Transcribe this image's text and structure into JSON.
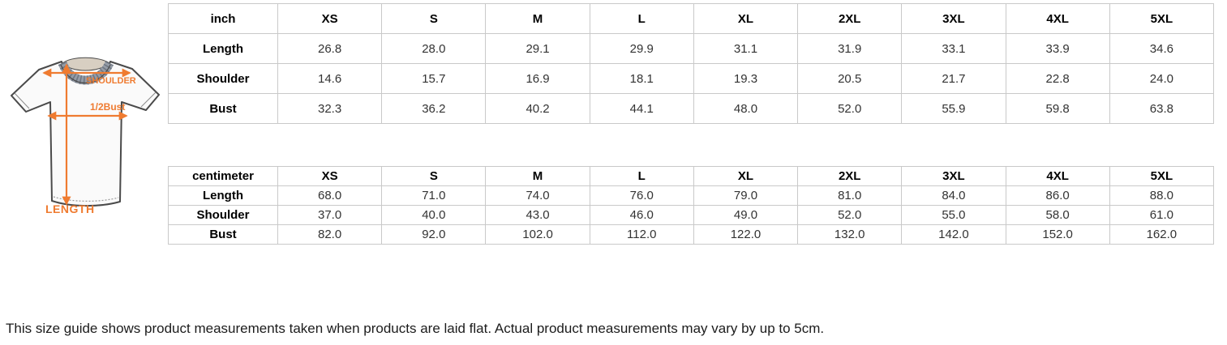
{
  "colors": {
    "accent_orange": "#EF7B30",
    "table_border": "#c9c9c9"
  },
  "diagram": {
    "shoulder_label": "SHOULDER",
    "bust_label": "1/2Bust",
    "length_label": "LENGTH"
  },
  "tables": [
    {
      "unit_header": "inch",
      "size_headers": [
        "XS",
        "S",
        "M",
        "L",
        "XL",
        "2XL",
        "3XL",
        "4XL",
        "5XL"
      ],
      "rows": [
        {
          "label": "Length",
          "values": [
            "26.8",
            "28.0",
            "29.1",
            "29.9",
            "31.1",
            "31.9",
            "33.1",
            "33.9",
            "34.6"
          ]
        },
        {
          "label": "Shoulder",
          "values": [
            "14.6",
            "15.7",
            "16.9",
            "18.1",
            "19.3",
            "20.5",
            "21.7",
            "22.8",
            "24.0"
          ]
        },
        {
          "label": "Bust",
          "values": [
            "32.3",
            "36.2",
            "40.2",
            "44.1",
            "48.0",
            "52.0",
            "55.9",
            "59.8",
            "63.8"
          ]
        }
      ]
    },
    {
      "unit_header": "centimeter",
      "size_headers": [
        "XS",
        "S",
        "M",
        "L",
        "XL",
        "2XL",
        "3XL",
        "4XL",
        "5XL"
      ],
      "rows": [
        {
          "label": "Length",
          "values": [
            "68.0",
            "71.0",
            "74.0",
            "76.0",
            "79.0",
            "81.0",
            "84.0",
            "86.0",
            "88.0"
          ]
        },
        {
          "label": "Shoulder",
          "values": [
            "37.0",
            "40.0",
            "43.0",
            "46.0",
            "49.0",
            "52.0",
            "55.0",
            "58.0",
            "61.0"
          ]
        },
        {
          "label": "Bust",
          "values": [
            "82.0",
            "92.0",
            "102.0",
            "112.0",
            "122.0",
            "132.0",
            "142.0",
            "152.0",
            "162.0"
          ]
        }
      ]
    }
  ],
  "footer": {
    "note": "This size guide shows product measurements taken when products are laid flat. Actual product measurements may vary by up to 5cm."
  }
}
